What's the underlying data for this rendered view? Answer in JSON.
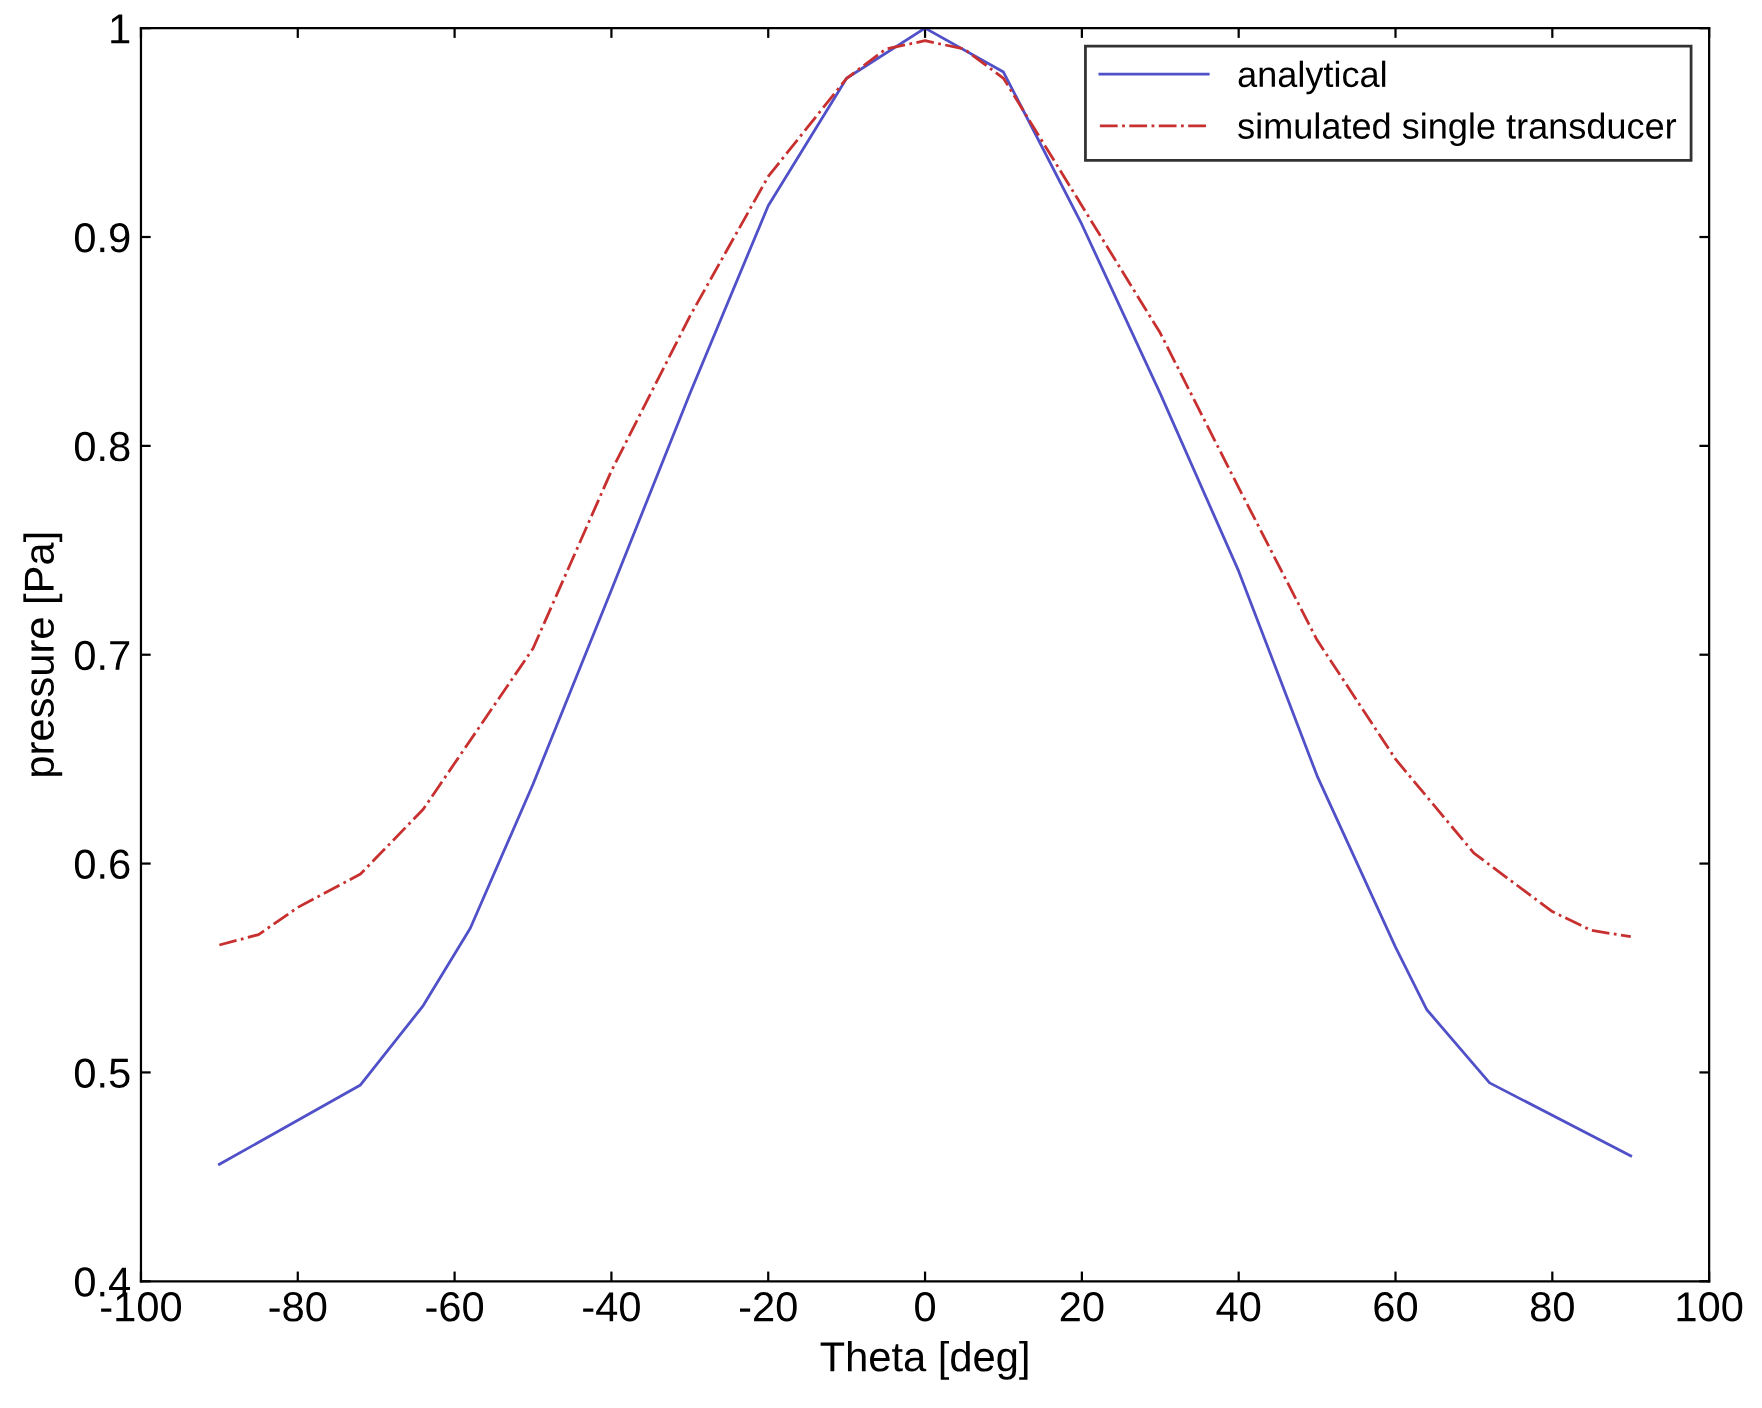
{
  "chart_data": {
    "type": "line",
    "xlabel": "Theta [deg]",
    "ylabel": "pressure [Pa]",
    "xlim": [
      -100,
      100
    ],
    "xticks": [
      -100,
      -80,
      -60,
      -40,
      -20,
      0,
      20,
      40,
      60,
      80,
      100
    ],
    "ylim": [
      0.4,
      1
    ],
    "yticks": [
      0.4,
      0.5,
      0.6,
      0.7,
      0.8,
      0.9,
      1
    ],
    "grid": false,
    "legend": "top right",
    "series": [
      {
        "name": "analytical",
        "color": "#5050c8",
        "line_style": "solid",
        "x": [
          -90,
          -72,
          -64,
          -58,
          -50,
          -40,
          -30,
          -20,
          -10,
          0,
          10,
          20,
          30,
          40,
          50,
          60,
          64,
          72,
          90
        ],
        "values": [
          0.456,
          0.494,
          0.532,
          0.569,
          0.638,
          0.731,
          0.825,
          0.915,
          0.976,
          1.0,
          0.979,
          0.906,
          0.825,
          0.74,
          0.642,
          0.56,
          0.53,
          0.495,
          0.46
        ]
      },
      {
        "name": "simulated single transducer",
        "color": "#c83030",
        "line_style": "dashdot",
        "x": [
          -90,
          -85,
          -80,
          -72,
          -64,
          -60,
          -50,
          -40,
          -30,
          -20,
          -10,
          -5,
          0,
          5,
          10,
          20,
          30,
          40,
          50,
          60,
          70,
          80,
          85,
          90
        ],
        "values": [
          0.561,
          0.566,
          0.579,
          0.595,
          0.626,
          0.648,
          0.703,
          0.788,
          0.862,
          0.929,
          0.976,
          0.99,
          0.994,
          0.99,
          0.976,
          0.915,
          0.854,
          0.78,
          0.707,
          0.65,
          0.605,
          0.577,
          0.568,
          0.565
        ]
      }
    ]
  }
}
